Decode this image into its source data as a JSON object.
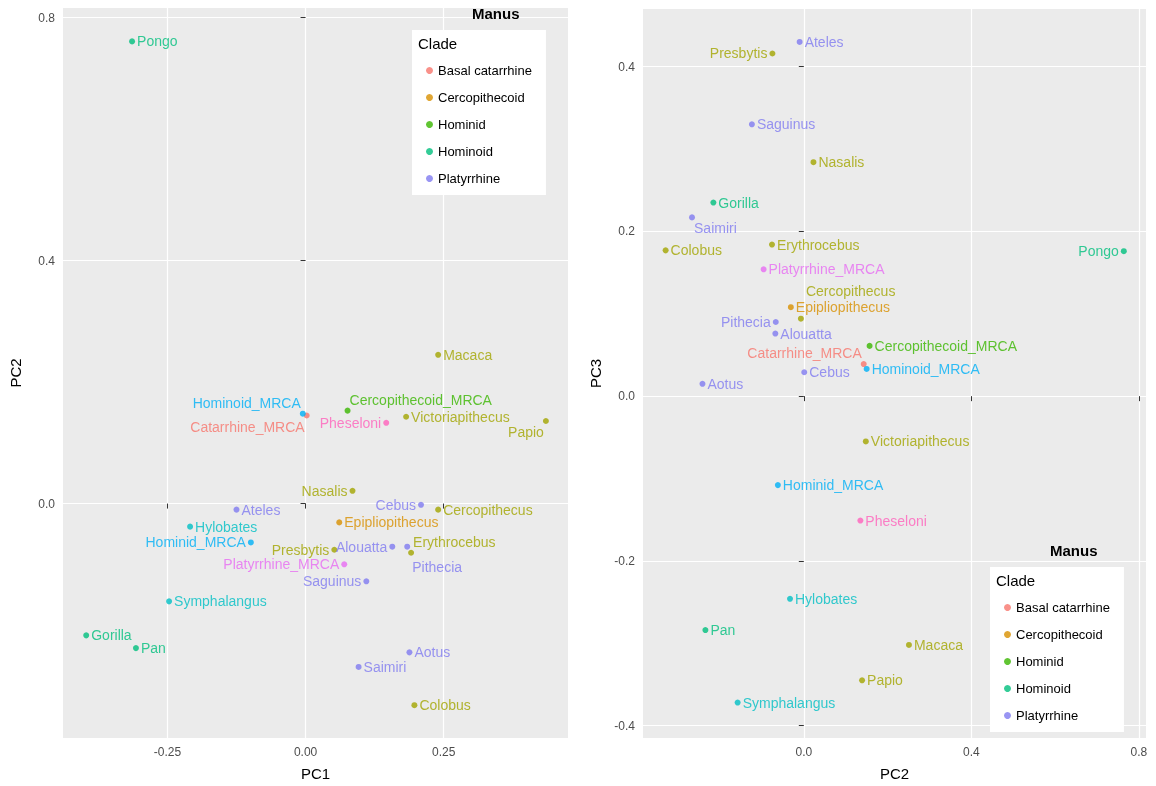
{
  "chart_data": [
    {
      "type": "scatter",
      "title": "Manus",
      "legend_title": "Clade",
      "xlabel": "PC1",
      "ylabel": "PC2",
      "xlim": [
        -0.439,
        0.475
      ],
      "ylim": [
        -0.386,
        0.816
      ],
      "xticks": [
        -0.25,
        {
          "value": 0,
          "label": "0.00"
        },
        0.25
      ],
      "yticks": [
        {
          "value": 0,
          "label": "0.0"
        },
        0.4,
        0.8
      ],
      "grid": true,
      "legend": "top right",
      "marker": "circle",
      "series": [
        {
          "name": "Basal catarrhine",
          "color": "#f8766d",
          "x": [
            0.002
          ],
          "values": [
            0.145
          ],
          "value_labels": [
            "Catarrhine_MRCA"
          ]
        },
        {
          "name": "Cercopithecoid",
          "color": "#d89000",
          "x": [
            0.061
          ],
          "values": [
            -0.031
          ],
          "value_labels": [
            "Epipliopithecus"
          ]
        },
        {
          "name": "Hominid",
          "color": "#39b600",
          "x": [
            0.076
          ],
          "values": [
            0.153
          ],
          "value_labels": [
            "Cercopithecoid_MRCA"
          ]
        },
        {
          "name": "Hominoid",
          "color": "#00bf7d",
          "x": [
            -0.314,
            -0.397,
            -0.307
          ],
          "values": [
            0.761,
            -0.217,
            -0.238
          ],
          "value_labels": [
            "Pongo",
            "Gorilla",
            "Pan"
          ]
        },
        {
          "name": "Platyrrhine",
          "color": "#807bf0",
          "x": [
            -0.125,
            0.209,
            0.184,
            0.157,
            0.11,
            0.188,
            0.096
          ],
          "values": [
            -0.01,
            -0.002,
            -0.071,
            -0.071,
            -0.128,
            -0.245,
            -0.269
          ],
          "value_labels": [
            "Ateles",
            "Cebus",
            "Pithecia",
            "Alouatta",
            "Saguinus",
            "Aotus",
            "Saimiri"
          ]
        },
        {
          "color": "#a3a500",
          "x": [
            0.24,
            0.182,
            0.435,
            0.085,
            0.24,
            0.052,
            0.191,
            0.197
          ],
          "values": [
            0.245,
            0.143,
            0.136,
            0.021,
            -0.01,
            -0.076,
            -0.081,
            -0.332
          ],
          "value_labels": [
            "Macaca",
            "Victoriapithecus",
            "Papio",
            "Nasalis",
            "Cercopithecus",
            "Presbytis",
            "Erythrocebus",
            "Colobus"
          ]
        },
        {
          "color": "#00b0f6",
          "x": [
            -0.005,
            -0.099
          ],
          "values": [
            0.148,
            -0.064
          ],
          "value_labels": [
            "Hominoid_MRCA",
            "Hominid_MRCA"
          ]
        },
        {
          "color": "#00bfc4",
          "x": [
            -0.209,
            -0.247
          ],
          "values": [
            -0.038,
            -0.161
          ],
          "value_labels": [
            "Hylobates",
            "Symphalangus"
          ]
        },
        {
          "color": "#ff62bc",
          "x": [
            0.146
          ],
          "values": [
            0.133
          ],
          "value_labels": [
            "Pheseloni"
          ]
        },
        {
          "color": "#e76bf3",
          "x": [
            0.07
          ],
          "values": [
            -0.1
          ],
          "value_labels": [
            "Platyrrhine_MRCA"
          ]
        }
      ]
    },
    {
      "type": "scatter",
      "title": "Manus",
      "legend_title": "Clade",
      "xlabel": "PC2",
      "ylabel": "PC3",
      "xlim": [
        -0.384,
        0.817
      ],
      "ylim": [
        -0.415,
        0.47
      ],
      "xticks": [
        {
          "value": 0,
          "label": "0.0"
        },
        0.4,
        0.8
      ],
      "yticks": [
        -0.4,
        -0.2,
        {
          "value": 0,
          "label": "0.0"
        },
        0.2,
        0.4
      ],
      "grid": true,
      "legend": "bottom right",
      "marker": "circle",
      "series": [
        {
          "name": "Basal catarrhine",
          "color": "#f8766d",
          "x": [
            0.143
          ],
          "values": [
            0.039
          ],
          "value_labels": [
            "Catarrhine_MRCA"
          ]
        },
        {
          "name": "Cercopithecoid",
          "color": "#d89000",
          "x": [
            -0.031
          ],
          "values": [
            0.108
          ],
          "value_labels": [
            "Epipliopithecus"
          ]
        },
        {
          "name": "Hominid",
          "color": "#39b600",
          "x": [
            0.157
          ],
          "values": [
            0.061
          ],
          "value_labels": [
            "Cercopithecoid_MRCA"
          ]
        },
        {
          "name": "Hominoid",
          "color": "#00bf7d",
          "x": [
            0.764,
            -0.216,
            -0.235
          ],
          "values": [
            0.176,
            0.235,
            -0.284
          ],
          "value_labels": [
            "Pongo",
            "Gorilla",
            "Pan"
          ]
        },
        {
          "name": "Platyrrhine",
          "color": "#807bf0",
          "x": [
            -0.01,
            0.001,
            -0.067,
            -0.068,
            -0.124,
            -0.242,
            -0.267
          ],
          "values": [
            0.43,
            0.029,
            0.09,
            0.076,
            0.33,
            0.015,
            0.217
          ],
          "value_labels": [
            "Ateles",
            "Cebus",
            "Pithecia",
            "Alouatta",
            "Saguinus",
            "Aotus",
            "Saimiri"
          ]
        },
        {
          "color": "#a3a500",
          "x": [
            0.251,
            0.148,
            0.139,
            0.023,
            -0.007,
            -0.075,
            -0.076,
            -0.33
          ],
          "values": [
            -0.302,
            -0.055,
            -0.345,
            0.284,
            0.094,
            0.416,
            0.184,
            0.177
          ],
          "value_labels": [
            "Macaca",
            "Victoriapithecus",
            "Papio",
            "Nasalis",
            "Cercopithecus",
            "Presbytis",
            "Erythrocebus",
            "Colobus"
          ]
        },
        {
          "color": "#00b0f6",
          "x": [
            0.15,
            -0.062
          ],
          "values": [
            0.033,
            -0.108
          ],
          "value_labels": [
            "Hominoid_MRCA",
            "Hominid_MRCA"
          ]
        },
        {
          "color": "#00bfc4",
          "x": [
            -0.033,
            -0.158
          ],
          "values": [
            -0.246,
            -0.372
          ],
          "value_labels": [
            "Hylobates",
            "Symphalangus"
          ]
        },
        {
          "color": "#ff62bc",
          "x": [
            0.135
          ],
          "values": [
            -0.151
          ],
          "value_labels": [
            "Pheseloni"
          ]
        },
        {
          "color": "#e76bf3",
          "x": [
            -0.096
          ],
          "values": [
            0.154
          ],
          "value_labels": [
            "Platyrrhine_MRCA"
          ]
        }
      ]
    }
  ]
}
